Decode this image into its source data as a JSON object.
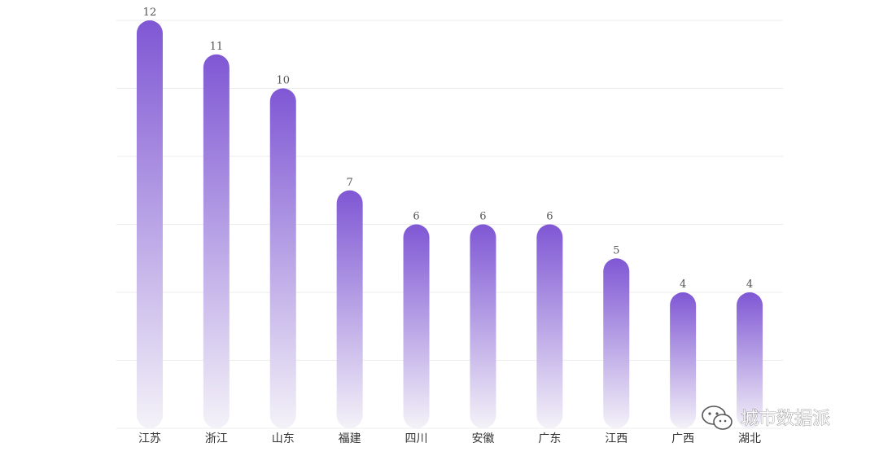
{
  "chart_data": {
    "type": "bar",
    "categories": [
      "江苏",
      "浙江",
      "山东",
      "福建",
      "四川",
      "安徽",
      "广东",
      "江西",
      "广西",
      "湖北"
    ],
    "values": [
      12,
      11,
      10,
      7,
      6,
      6,
      6,
      5,
      4,
      4
    ],
    "ylim": [
      0,
      12
    ],
    "grid": true,
    "bar_color": "#7f57d4",
    "bar_fade_color": "#f4f2f8"
  },
  "watermark": {
    "text": "城市数据派",
    "icon": "wechat-icon"
  }
}
